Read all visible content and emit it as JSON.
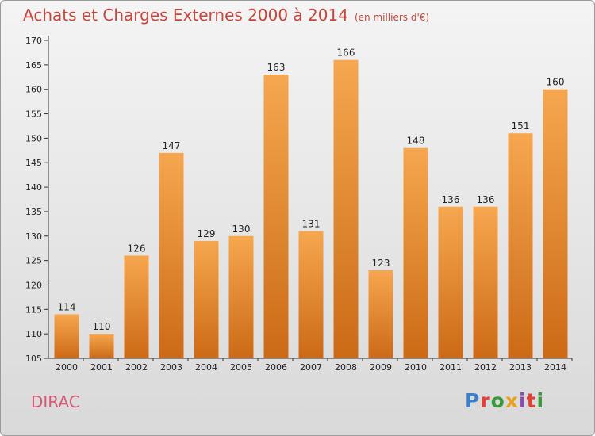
{
  "header": {
    "title": "Achats et Charges Externes 2000 à 2014",
    "subtitle": "(en milliers d'€)"
  },
  "footer": {
    "town": "DIRAC",
    "logo": [
      "P",
      "r",
      "o",
      "x",
      "i",
      "t",
      "i"
    ],
    "logo_colors": [
      "#3a7fc8",
      "#e0403a",
      "#3a9a3a",
      "#e8a020",
      "#8a4ab0",
      "#e0403a",
      "#3a9a3a"
    ]
  },
  "chart_data": {
    "type": "bar",
    "title": "Achats et Charges Externes 2000 à 2014",
    "subtitle": "(en milliers d'€)",
    "categories": [
      "2000",
      "2001",
      "2002",
      "2003",
      "2004",
      "2005",
      "2006",
      "2007",
      "2008",
      "2009",
      "2010",
      "2011",
      "2012",
      "2013",
      "2014"
    ],
    "values": [
      114,
      110,
      126,
      147,
      129,
      130,
      163,
      131,
      166,
      123,
      148,
      136,
      136,
      151,
      160
    ],
    "ylim": [
      105,
      170
    ],
    "yticks": [
      105,
      110,
      115,
      120,
      125,
      130,
      135,
      140,
      145,
      150,
      155,
      160,
      165,
      170
    ],
    "grid": false,
    "data_labels": true,
    "colors": {
      "bar_top": "#f6a74f",
      "bar_bottom": "#cc6a16",
      "axis": "#333333",
      "text": "#222222"
    }
  }
}
